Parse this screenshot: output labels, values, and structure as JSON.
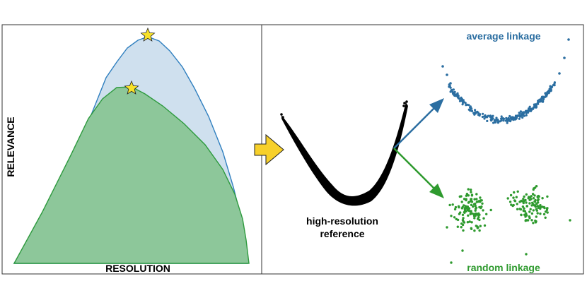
{
  "left_panel": {
    "x_axis_label": "RESOLUTION",
    "y_axis_label": "RELEVANCE",
    "colors": {
      "upper_fill": "#cfe0ee",
      "upper_line": "#2f7fbf",
      "lower_fill": "#8dc79a",
      "lower_line": "#2e9a3e",
      "star": "#f7e12a"
    }
  },
  "arrow_color": "#f7d02a",
  "center": {
    "label_line1": "high-resolution",
    "label_line2": "reference"
  },
  "right": {
    "average_label": "average linkage",
    "random_label": "random linkage",
    "colors": {
      "average": "#2b6ea1",
      "random": "#2e9a2e"
    }
  }
}
